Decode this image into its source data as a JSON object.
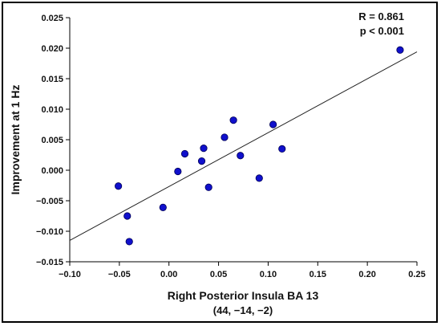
{
  "chart_data": {
    "type": "scatter",
    "xlabel": "Right Posterior Insula BA 13",
    "xlabel_sub": "(44, −14, −2)",
    "ylabel": "Improvement at 1 Hz",
    "xlim": [
      -0.1,
      0.25
    ],
    "ylim": [
      -0.015,
      0.025
    ],
    "x_ticks": [
      "−0.10",
      "−0.05",
      "0.00",
      "0.05",
      "0.10",
      "0.15",
      "0.20",
      "0.25"
    ],
    "x_tick_values": [
      -0.1,
      -0.05,
      0.0,
      0.05,
      0.1,
      0.15,
      0.2,
      0.25
    ],
    "y_ticks": [
      "−0.015",
      "−0.010",
      "−0.005",
      "0.000",
      "0.005",
      "0.010",
      "0.015",
      "0.020",
      "0.025"
    ],
    "y_tick_values": [
      -0.015,
      -0.01,
      -0.005,
      0.0,
      0.005,
      0.01,
      0.015,
      0.02,
      0.025
    ],
    "annotations": [
      "R = 0.861",
      "p < 0.001"
    ],
    "grid": false,
    "point_color": "#1010cc",
    "points": [
      {
        "x": -0.051,
        "y": -0.0026
      },
      {
        "x": -0.042,
        "y": -0.0075
      },
      {
        "x": -0.04,
        "y": -0.0117
      },
      {
        "x": -0.006,
        "y": -0.0061
      },
      {
        "x": 0.009,
        "y": -0.0002
      },
      {
        "x": 0.016,
        "y": 0.0027
      },
      {
        "x": 0.033,
        "y": 0.0015
      },
      {
        "x": 0.035,
        "y": 0.0036
      },
      {
        "x": 0.04,
        "y": -0.0028
      },
      {
        "x": 0.056,
        "y": 0.0054
      },
      {
        "x": 0.065,
        "y": 0.0082
      },
      {
        "x": 0.072,
        "y": 0.0024
      },
      {
        "x": 0.091,
        "y": -0.0013
      },
      {
        "x": 0.105,
        "y": 0.0075
      },
      {
        "x": 0.114,
        "y": 0.0035
      },
      {
        "x": 0.233,
        "y": 0.0197
      }
    ],
    "fit_line": {
      "x": [
        -0.1,
        0.25
      ],
      "y": [
        -0.0115,
        0.0194
      ]
    }
  }
}
